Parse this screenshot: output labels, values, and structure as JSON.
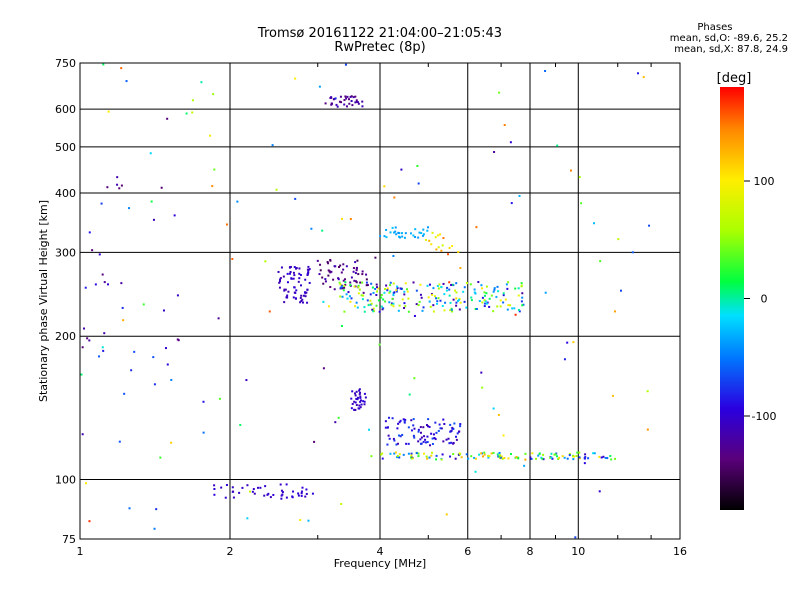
{
  "title": "Tromsø 20161122 21:04:00–21:05:43",
  "subtitle": "RwPretec (8p)",
  "stats": {
    "heading": "Phases",
    "line1": "mean, sd,O: -89.6, 25.2",
    "line2": "mean, sd,X:  87.8, 24.9"
  },
  "colorbar": {
    "unit": "[deg]",
    "range": [
      -180,
      180
    ],
    "ticks": [
      "100",
      "0",
      "-100"
    ],
    "tick_values": [
      100,
      0,
      -100
    ],
    "palette": "rainbow"
  },
  "chart_data": {
    "type": "scatter",
    "xlabel": "Frequency [MHz]",
    "ylabel": "Stationary phase Virtual Height [km]",
    "x_scale": "log",
    "y_scale": "log",
    "xlim": [
      1,
      16
    ],
    "ylim": [
      75,
      750
    ],
    "grid": true,
    "x_ticks": [
      1,
      2,
      4,
      6,
      8,
      10,
      16
    ],
    "x_tick_labels": [
      "1",
      "2",
      "4",
      "6",
      "8",
      "10",
      "16"
    ],
    "y_ticks": [
      75,
      100,
      200,
      300,
      400,
      500,
      600,
      750
    ],
    "y_tick_labels": [
      "75",
      "100",
      "200",
      "300",
      "400",
      "500",
      "600",
      "750"
    ],
    "clusters": [
      {
        "name": "low E-layer trace",
        "x": [
          1.85,
          2.95
        ],
        "y": [
          91,
          98
        ],
        "phase": [
          -110,
          -95
        ],
        "count": 45
      },
      {
        "name": "Es cluster",
        "x": [
          3.5,
          3.75
        ],
        "y": [
          140,
          155
        ],
        "phase": [
          -115,
          -95
        ],
        "count": 35
      },
      {
        "name": "E region upper band",
        "x": [
          4.1,
          5.8
        ],
        "y": [
          118,
          135
        ],
        "phase": [
          -120,
          -60
        ],
        "count": 90
      },
      {
        "name": "E region main trace",
        "x": [
          3.8,
          12.0
        ],
        "y": [
          110,
          114
        ],
        "phase": [
          -115,
          140
        ],
        "count": 130
      },
      {
        "name": "F region violet band",
        "x": [
          3.0,
          3.8
        ],
        "y": [
          250,
          290
        ],
        "phase": [
          -150,
          -110
        ],
        "count": 60
      },
      {
        "name": "F region blue block",
        "x": [
          2.5,
          2.9
        ],
        "y": [
          235,
          280
        ],
        "phase": [
          -115,
          -95
        ],
        "count": 70
      },
      {
        "name": "F region main trace",
        "x": [
          3.3,
          7.8
        ],
        "y": [
          225,
          260
        ],
        "phase": [
          -130,
          110
        ],
        "count": 230
      },
      {
        "name": "F region cyan band",
        "x": [
          4.0,
          5.0
        ],
        "y": [
          320,
          340
        ],
        "phase": [
          -40,
          -20
        ],
        "count": 30
      },
      {
        "name": "F region upper points",
        "x": [
          4.9,
          5.8
        ],
        "y": [
          300,
          330
        ],
        "phase": [
          60,
          150
        ],
        "count": 15
      },
      {
        "name": "high-altitude echoes",
        "x": [
          3.1,
          3.7
        ],
        "y": [
          605,
          640
        ],
        "phase": [
          -140,
          -110
        ],
        "count": 35
      },
      {
        "name": "low-frequency scattered",
        "x": [
          1.0,
          1.6
        ],
        "y": [
          150,
          420
        ],
        "phase": [
          -140,
          -60
        ],
        "count": 35
      },
      {
        "name": "scattered background",
        "x": [
          1.0,
          14.0
        ],
        "y": [
          75,
          750
        ],
        "phase": [
          -150,
          170
        ],
        "count": 130
      }
    ]
  }
}
